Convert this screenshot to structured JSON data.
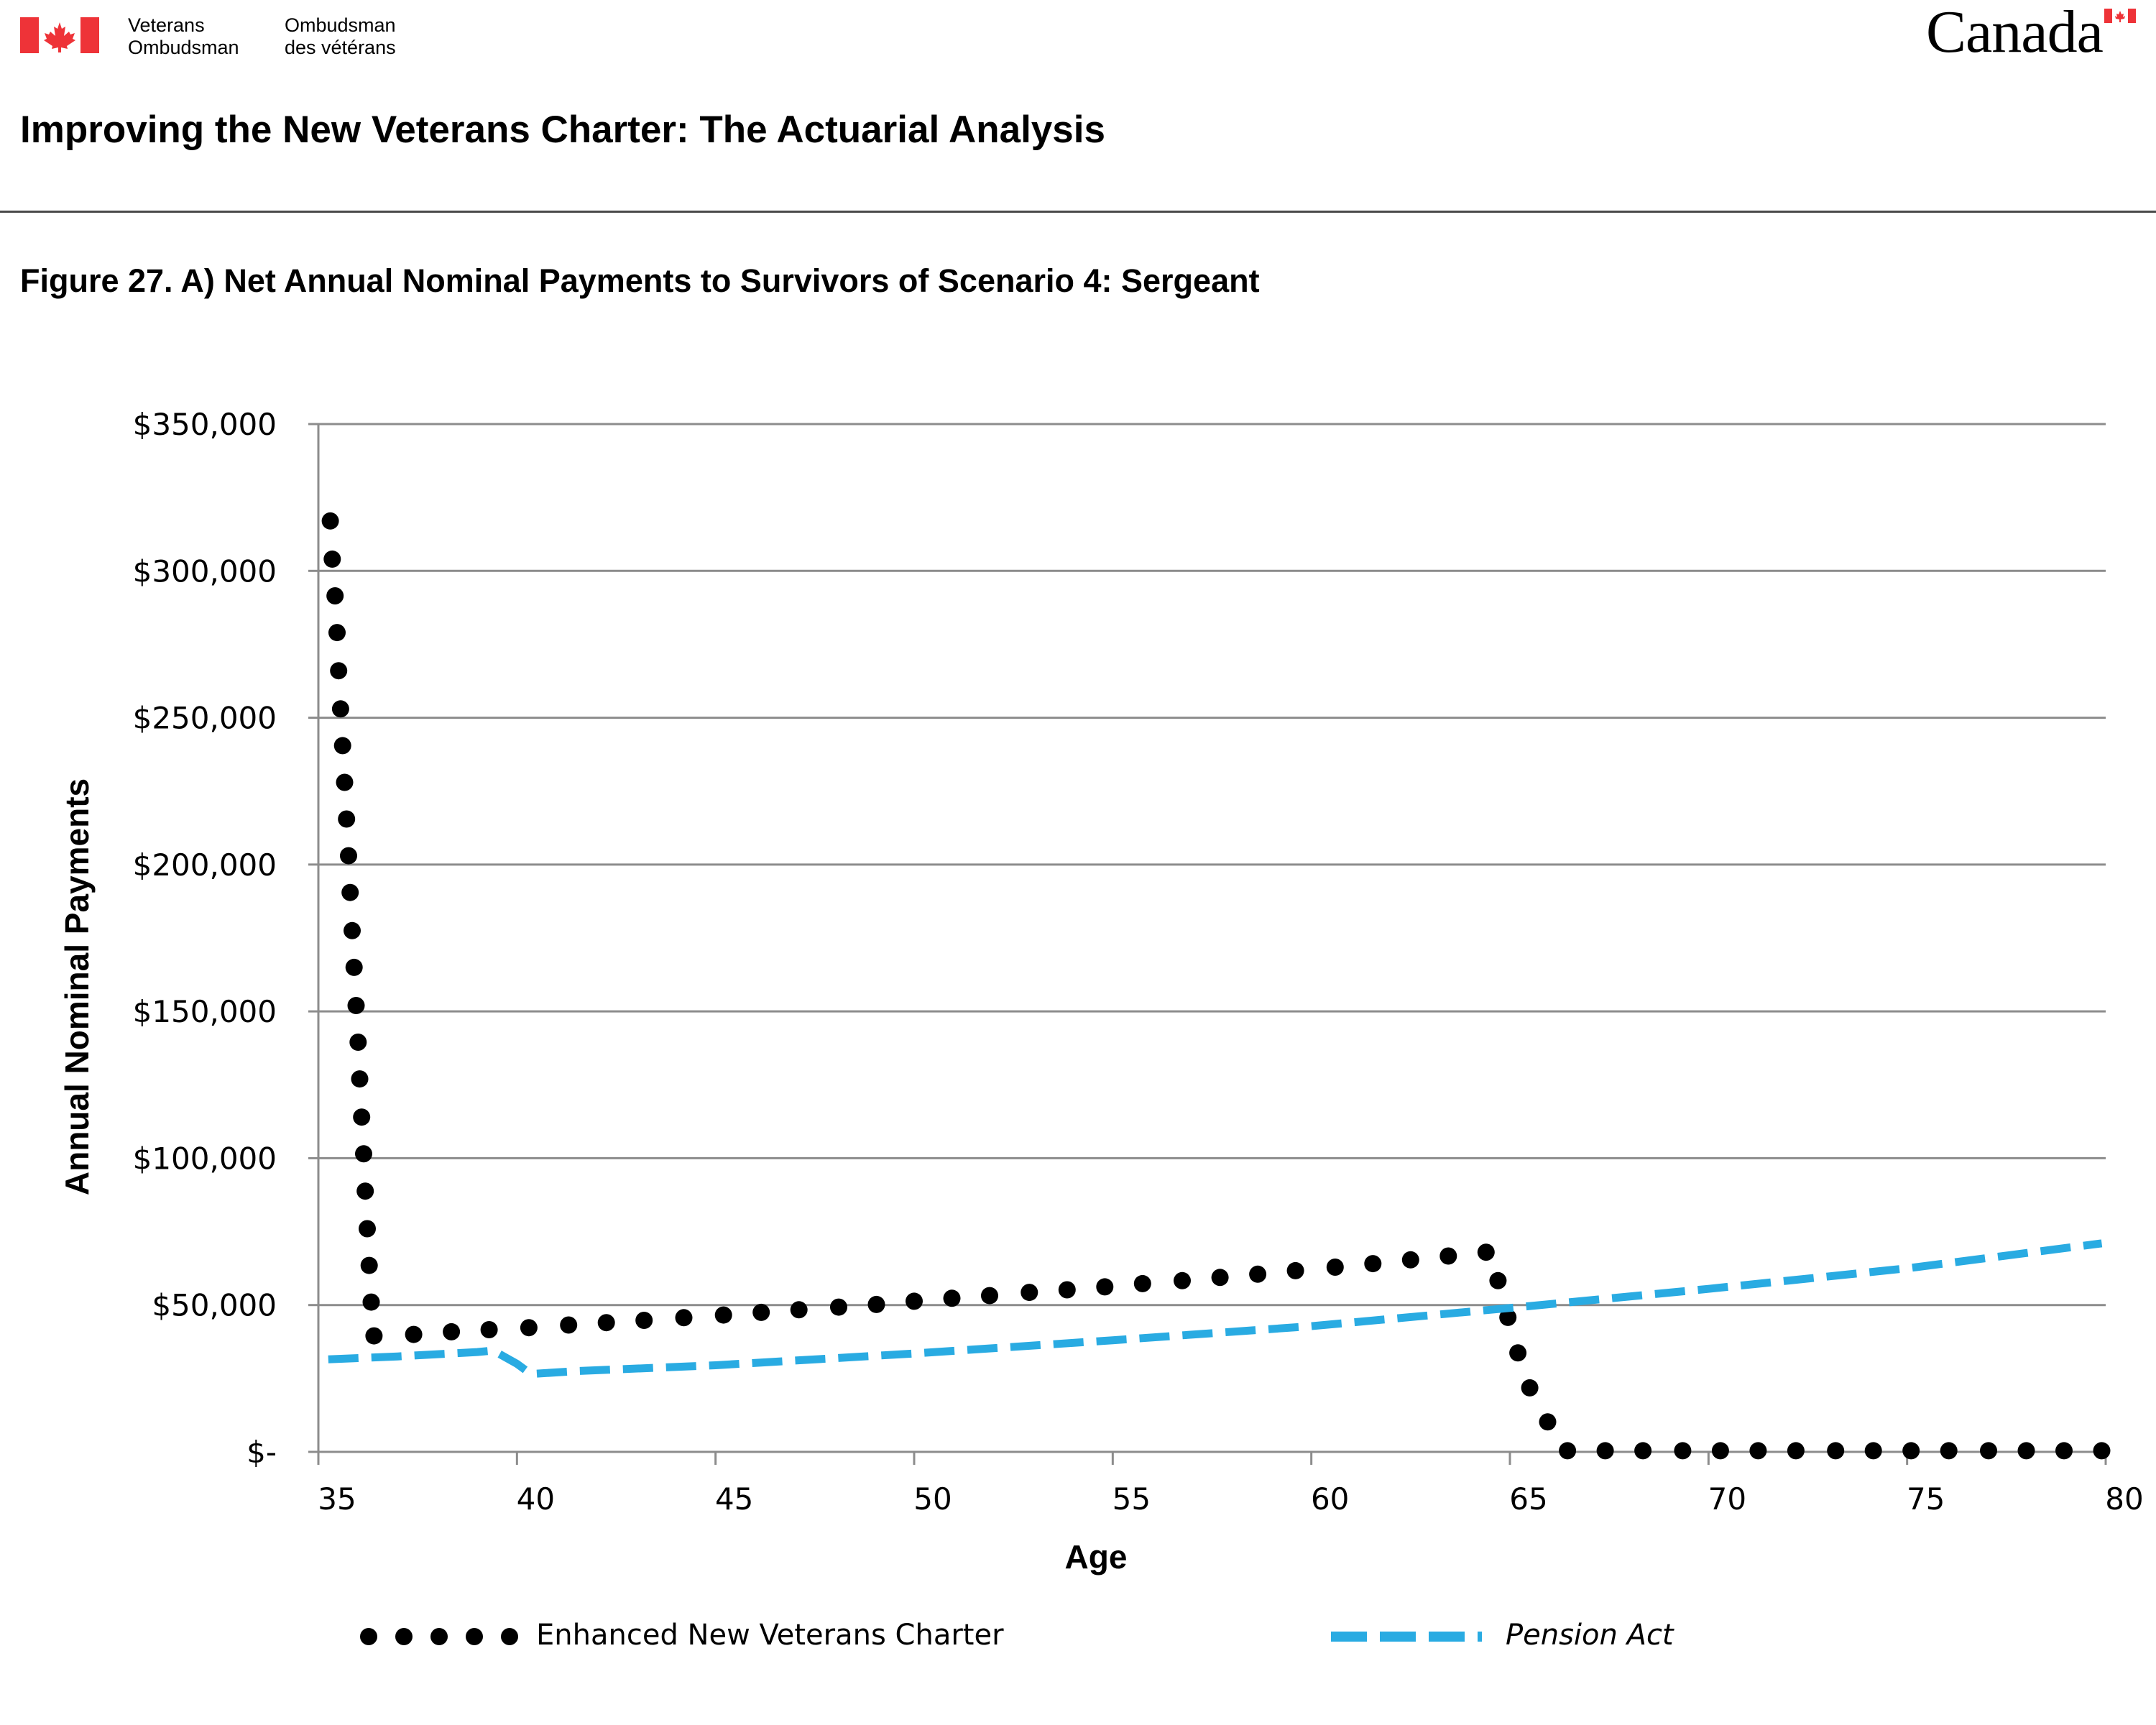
{
  "header": {
    "dept_en_line1": "Veterans",
    "dept_en_line2": "Ombudsman",
    "dept_fr_line1": "Ombudsman",
    "dept_fr_line2": "des vétérans",
    "wordmark": "Canada",
    "flag_color": "#ee3338"
  },
  "document_title": "Improving the New Veterans Charter: The Actuarial Analysis",
  "figure_title": "Figure 27. A) Net Annual Nominal Payments to Survivors of Scenario 4: Sergeant",
  "chart_data": {
    "type": "line",
    "xlabel": "Age",
    "ylabel": "Annual Nominal Payments",
    "xlim": [
      35,
      80
    ],
    "ylim": [
      0,
      350000
    ],
    "x_ticks": [
      "35",
      "40",
      "45",
      "50",
      "55",
      "60",
      "65",
      "70",
      "75",
      "80"
    ],
    "y_ticks": [
      "$-",
      "$50,000",
      "$100,000",
      "$150,000",
      "$200,000",
      "$250,000",
      "$300,000",
      "$350,000"
    ],
    "grid": true,
    "legend_position": "bottom",
    "series": [
      {
        "name": "Enhanced New Veterans Charter",
        "style": "dotted",
        "color": "#000000",
        "points": [
          [
            35.3,
            317000
          ],
          [
            35.35,
            304000
          ],
          [
            35.42,
            291500
          ],
          [
            35.47,
            279000
          ],
          [
            35.51,
            266000
          ],
          [
            35.56,
            253000
          ],
          [
            35.61,
            240500
          ],
          [
            35.66,
            228000
          ],
          [
            35.71,
            215500
          ],
          [
            35.76,
            203000
          ],
          [
            35.8,
            190500
          ],
          [
            35.85,
            177500
          ],
          [
            35.9,
            165000
          ],
          [
            35.95,
            152000
          ],
          [
            36.0,
            139500
          ],
          [
            36.04,
            127000
          ],
          [
            36.09,
            114000
          ],
          [
            36.14,
            101500
          ],
          [
            36.18,
            88800
          ],
          [
            36.23,
            76000
          ],
          [
            36.28,
            63500
          ],
          [
            36.33,
            51000
          ],
          [
            36.4,
            39500
          ],
          [
            37.4,
            40000
          ],
          [
            38.35,
            40900
          ],
          [
            39.3,
            41600
          ],
          [
            40.3,
            42300
          ],
          [
            41.3,
            43200
          ],
          [
            42.25,
            44000
          ],
          [
            43.2,
            44800
          ],
          [
            44.2,
            45700
          ],
          [
            45.2,
            46600
          ],
          [
            46.15,
            47500
          ],
          [
            47.1,
            48400
          ],
          [
            48.1,
            49300
          ],
          [
            49.05,
            50200
          ],
          [
            50.0,
            51300
          ],
          [
            50.95,
            52300
          ],
          [
            51.9,
            53200
          ],
          [
            52.9,
            54300
          ],
          [
            53.85,
            55200
          ],
          [
            54.8,
            56200
          ],
          [
            55.75,
            57300
          ],
          [
            56.75,
            58300
          ],
          [
            57.7,
            59400
          ],
          [
            58.65,
            60500
          ],
          [
            59.6,
            61700
          ],
          [
            60.6,
            62900
          ],
          [
            61.55,
            64100
          ],
          [
            62.5,
            65400
          ],
          [
            63.45,
            66700
          ],
          [
            64.4,
            68000
          ],
          [
            64.7,
            58300
          ],
          [
            64.95,
            45800
          ],
          [
            65.2,
            33700
          ],
          [
            65.5,
            21800
          ],
          [
            65.95,
            10200
          ],
          [
            66.45,
            400
          ],
          [
            67.4,
            400
          ],
          [
            68.35,
            400
          ],
          [
            69.35,
            400
          ],
          [
            70.3,
            400
          ],
          [
            71.25,
            400
          ],
          [
            72.2,
            400
          ],
          [
            73.2,
            400
          ],
          [
            74.15,
            400
          ],
          [
            75.1,
            400
          ],
          [
            76.05,
            400
          ],
          [
            77.05,
            400
          ],
          [
            78.0,
            400
          ],
          [
            78.95,
            400
          ],
          [
            79.9,
            400
          ]
        ]
      },
      {
        "name": "Pension Act",
        "style": "dashed",
        "color": "#29abe2",
        "points": [
          [
            35.25,
            31500
          ],
          [
            37.0,
            32500
          ],
          [
            39.0,
            34000
          ],
          [
            39.4,
            34500
          ],
          [
            40.0,
            30000
          ],
          [
            40.35,
            26500
          ],
          [
            41.5,
            27500
          ],
          [
            45.0,
            29500
          ],
          [
            50.0,
            33500
          ],
          [
            55.0,
            38000
          ],
          [
            60.0,
            42800
          ],
          [
            65.0,
            49000
          ],
          [
            70.0,
            55500
          ],
          [
            75.0,
            62500
          ],
          [
            79.9,
            71000
          ]
        ]
      }
    ]
  }
}
